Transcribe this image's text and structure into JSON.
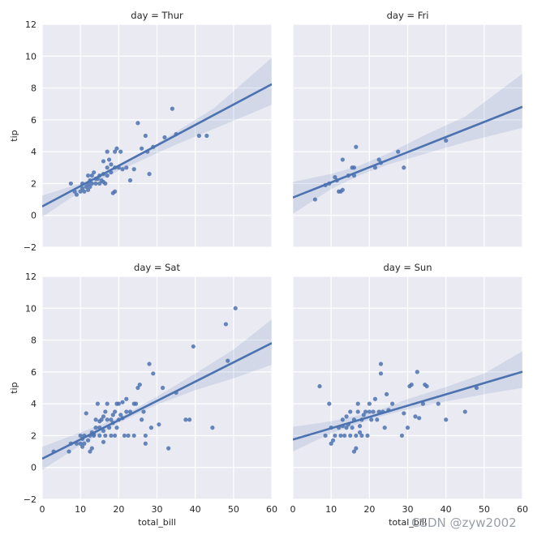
{
  "watermark": "CSDN @zyw2002",
  "colors": {
    "panel_bg": "#eaeaf2",
    "point": "#4c72b0",
    "line": "#4c72b0"
  },
  "chart_data": {
    "type": "scatter",
    "layout": "2x2 facet grid",
    "xlabel": "total_bill",
    "ylabel": "tip",
    "xlim": [
      0,
      60
    ],
    "ylim": [
      -2,
      12
    ],
    "xticks": [
      "0",
      "10",
      "20",
      "30",
      "40",
      "50",
      "60"
    ],
    "yticks": [
      "−2",
      "0",
      "2",
      "4",
      "6",
      "8",
      "10",
      "12"
    ],
    "panels": [
      {
        "title": "day = Thur",
        "regression": {
          "intercept": 0.56,
          "slope": 0.128
        },
        "band": {
          "x": [
            0,
            10,
            17.7,
            25,
            35,
            45,
            60
          ],
          "lower": [
            -0.1,
            1.5,
            2.55,
            3.35,
            4.45,
            5.45,
            6.95
          ],
          "upper": [
            1.25,
            2.0,
            2.8,
            3.75,
            5.25,
            6.75,
            9.9
          ]
        },
        "points": [
          [
            7.5,
            2.0
          ],
          [
            8.5,
            1.5
          ],
          [
            9.0,
            1.3
          ],
          [
            10.0,
            1.5
          ],
          [
            10.5,
            1.7
          ],
          [
            10.5,
            2.0
          ],
          [
            11.0,
            1.5
          ],
          [
            11.5,
            1.8
          ],
          [
            12.0,
            1.6
          ],
          [
            12.0,
            2.0
          ],
          [
            12.5,
            1.8
          ],
          [
            13.0,
            2.0
          ],
          [
            12.5,
            2.2
          ],
          [
            13.0,
            2.5
          ],
          [
            14.0,
            2.0
          ],
          [
            14.0,
            2.3
          ],
          [
            15.0,
            2.0
          ],
          [
            15.0,
            2.5
          ],
          [
            16.0,
            2.1
          ],
          [
            16.0,
            2.6
          ],
          [
            16.5,
            2.0
          ],
          [
            17.0,
            2.5
          ],
          [
            17.0,
            3.0
          ],
          [
            17.5,
            3.5
          ],
          [
            17.0,
            4.0
          ],
          [
            18.0,
            2.7
          ],
          [
            18.0,
            3.2
          ],
          [
            19.0,
            3.0
          ],
          [
            19.0,
            4.0
          ],
          [
            19.5,
            4.2
          ],
          [
            20.0,
            3.0
          ],
          [
            20.5,
            4.0
          ],
          [
            21.0,
            2.9
          ],
          [
            18.5,
            1.4
          ],
          [
            19.0,
            1.5
          ],
          [
            22.0,
            3.0
          ],
          [
            23.0,
            2.2
          ],
          [
            24.0,
            2.9
          ],
          [
            25.0,
            5.8
          ],
          [
            26.0,
            4.2
          ],
          [
            27.0,
            5.0
          ],
          [
            27.5,
            4.0
          ],
          [
            28.0,
            2.6
          ],
          [
            29.0,
            4.3
          ],
          [
            32.0,
            4.9
          ],
          [
            34.0,
            6.7
          ],
          [
            35.0,
            5.1
          ],
          [
            41.0,
            5.0
          ],
          [
            43.0,
            5.0
          ],
          [
            12.0,
            2.5
          ],
          [
            14.5,
            2.3
          ],
          [
            16.0,
            3.4
          ],
          [
            15.5,
            2.2
          ],
          [
            13.5,
            2.7
          ]
        ]
      },
      {
        "title": "day = Fri",
        "regression": {
          "intercept": 1.12,
          "slope": 0.095
        },
        "band": {
          "x": [
            0,
            10,
            17.2,
            25,
            35,
            45,
            60
          ],
          "lower": [
            0.1,
            1.65,
            2.5,
            3.2,
            3.9,
            4.6,
            5.5
          ],
          "upper": [
            2.1,
            2.6,
            3.1,
            3.9,
            5.1,
            6.2,
            8.9
          ]
        },
        "points": [
          [
            5.8,
            1.0
          ],
          [
            8.5,
            1.9
          ],
          [
            9.5,
            2.0
          ],
          [
            11.0,
            2.4
          ],
          [
            11.5,
            2.2
          ],
          [
            12.0,
            1.5
          ],
          [
            12.5,
            1.5
          ],
          [
            13.0,
            1.6
          ],
          [
            13.0,
            3.5
          ],
          [
            14.5,
            2.5
          ],
          [
            15.5,
            3.0
          ],
          [
            16.0,
            3.0
          ],
          [
            16.0,
            2.5
          ],
          [
            16.5,
            4.3
          ],
          [
            21.5,
            3.0
          ],
          [
            22.5,
            3.5
          ],
          [
            23.0,
            3.3
          ],
          [
            27.5,
            4.0
          ],
          [
            29.0,
            3.0
          ],
          [
            40.0,
            4.7
          ]
        ]
      },
      {
        "title": "day = Sat",
        "regression": {
          "intercept": 0.55,
          "slope": 0.121
        },
        "band": {
          "x": [
            0,
            10,
            20.4,
            30,
            40,
            50,
            60
          ],
          "lower": [
            -0.15,
            1.4,
            2.85,
            3.95,
            4.85,
            5.6,
            6.45
          ],
          "upper": [
            1.3,
            2.2,
            3.15,
            4.45,
            5.9,
            7.4,
            9.3
          ]
        },
        "points": [
          [
            3.0,
            1.0
          ],
          [
            7.0,
            1.0
          ],
          [
            7.5,
            1.5
          ],
          [
            9.0,
            1.5
          ],
          [
            10.0,
            1.5
          ],
          [
            10.0,
            2.0
          ],
          [
            10.5,
            1.3
          ],
          [
            10.5,
            1.8
          ],
          [
            11.0,
            1.5
          ],
          [
            11.0,
            2.0
          ],
          [
            11.5,
            3.4
          ],
          [
            12.0,
            1.7
          ],
          [
            12.5,
            2.0
          ],
          [
            12.5,
            1.0
          ],
          [
            13.0,
            2.2
          ],
          [
            13.0,
            1.2
          ],
          [
            13.5,
            2.0
          ],
          [
            14.0,
            2.5
          ],
          [
            14.0,
            3.0
          ],
          [
            14.5,
            4.0
          ],
          [
            15.0,
            2.0
          ],
          [
            15.0,
            2.5
          ],
          [
            15.5,
            3.0
          ],
          [
            16.0,
            1.6
          ],
          [
            16.0,
            2.3
          ],
          [
            16.0,
            3.2
          ],
          [
            16.5,
            2.0
          ],
          [
            17.0,
            3.0
          ],
          [
            17.0,
            4.0
          ],
          [
            17.5,
            2.5
          ],
          [
            18.0,
            2.0
          ],
          [
            18.0,
            3.0
          ],
          [
            18.5,
            2.8
          ],
          [
            19.0,
            2.0
          ],
          [
            19.0,
            3.5
          ],
          [
            19.5,
            2.5
          ],
          [
            20.0,
            3.0
          ],
          [
            20.0,
            4.0
          ],
          [
            20.5,
            3.3
          ],
          [
            21.0,
            4.1
          ],
          [
            21.5,
            2.0
          ],
          [
            22.0,
            3.5
          ],
          [
            22.0,
            4.3
          ],
          [
            22.5,
            2.0
          ],
          [
            23.0,
            3.5
          ],
          [
            24.0,
            2.0
          ],
          [
            24.5,
            4.0
          ],
          [
            25.0,
            5.0
          ],
          [
            25.5,
            5.2
          ],
          [
            26.0,
            3.0
          ],
          [
            26.5,
            3.5
          ],
          [
            27.0,
            2.0
          ],
          [
            27.0,
            1.5
          ],
          [
            28.0,
            6.5
          ],
          [
            28.5,
            2.5
          ],
          [
            29.0,
            5.9
          ],
          [
            30.5,
            2.7
          ],
          [
            31.5,
            5.0
          ],
          [
            33.0,
            1.2
          ],
          [
            35.0,
            4.7
          ],
          [
            37.5,
            3.0
          ],
          [
            38.5,
            3.0
          ],
          [
            39.5,
            7.6
          ],
          [
            44.5,
            2.5
          ],
          [
            48.0,
            9.0
          ],
          [
            48.5,
            6.7
          ],
          [
            50.5,
            10.0
          ],
          [
            13.5,
            2.1
          ],
          [
            16.5,
            3.5
          ],
          [
            18.5,
            3.3
          ],
          [
            21.0,
            3.1
          ],
          [
            19.5,
            4.0
          ],
          [
            24.0,
            4.0
          ],
          [
            15.0,
            2.9
          ]
        ]
      },
      {
        "title": "day = Sun",
        "regression": {
          "intercept": 1.75,
          "slope": 0.071
        },
        "band": {
          "x": [
            0,
            10,
            21.4,
            30,
            40,
            50,
            60
          ],
          "lower": [
            1.0,
            2.15,
            3.1,
            3.65,
            4.15,
            4.6,
            5.0
          ],
          "upper": [
            2.55,
            2.9,
            3.5,
            4.3,
            5.05,
            5.9,
            7.3
          ]
        },
        "points": [
          [
            7.0,
            5.1
          ],
          [
            8.5,
            2.0
          ],
          [
            9.5,
            4.0
          ],
          [
            10.0,
            1.5
          ],
          [
            10.0,
            2.5
          ],
          [
            10.5,
            1.7
          ],
          [
            11.0,
            2.0
          ],
          [
            12.0,
            2.5
          ],
          [
            12.5,
            2.0
          ],
          [
            13.0,
            2.6
          ],
          [
            13.0,
            3.0
          ],
          [
            13.5,
            2.0
          ],
          [
            14.0,
            2.5
          ],
          [
            14.0,
            3.2
          ],
          [
            15.0,
            2.0
          ],
          [
            15.0,
            3.5
          ],
          [
            15.5,
            2.5
          ],
          [
            16.0,
            3.0
          ],
          [
            16.5,
            1.2
          ],
          [
            16.5,
            2.0
          ],
          [
            17.0,
            3.5
          ],
          [
            17.0,
            4.0
          ],
          [
            17.5,
            2.2
          ],
          [
            18.0,
            3.0
          ],
          [
            18.0,
            2.0
          ],
          [
            18.5,
            3.3
          ],
          [
            19.0,
            3.5
          ],
          [
            20.0,
            3.5
          ],
          [
            20.5,
            3.0
          ],
          [
            21.0,
            3.5
          ],
          [
            21.5,
            4.3
          ],
          [
            22.0,
            3.0
          ],
          [
            22.5,
            3.5
          ],
          [
            23.0,
            5.9
          ],
          [
            23.0,
            6.5
          ],
          [
            23.5,
            3.5
          ],
          [
            24.0,
            2.5
          ],
          [
            24.5,
            4.6
          ],
          [
            25.0,
            3.6
          ],
          [
            26.0,
            4.0
          ],
          [
            28.5,
            2.0
          ],
          [
            29.0,
            3.4
          ],
          [
            30.0,
            2.5
          ],
          [
            30.5,
            5.1
          ],
          [
            31.0,
            5.2
          ],
          [
            32.0,
            3.2
          ],
          [
            32.5,
            6.0
          ],
          [
            33.0,
            3.1
          ],
          [
            34.0,
            4.0
          ],
          [
            34.5,
            5.2
          ],
          [
            35.0,
            5.1
          ],
          [
            38.0,
            4.0
          ],
          [
            40.0,
            3.0
          ],
          [
            45.0,
            3.5
          ],
          [
            48.0,
            5.0
          ],
          [
            16.0,
            1.0
          ],
          [
            19.5,
            2.0
          ],
          [
            14.5,
            2.7
          ],
          [
            20.0,
            4.0
          ],
          [
            17.5,
            2.6
          ]
        ]
      }
    ]
  }
}
